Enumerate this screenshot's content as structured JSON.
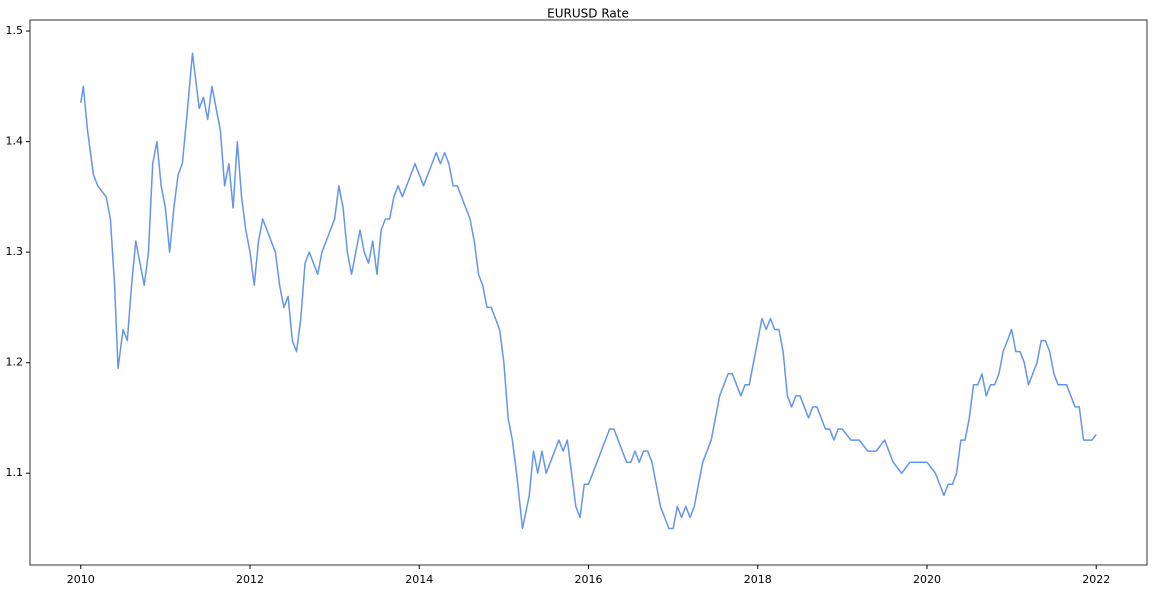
{
  "chart_data": {
    "type": "line",
    "title": "EURUSD Rate",
    "x": [
      2010.0,
      2010.03,
      2010.08,
      2010.15,
      2010.2,
      2010.3,
      2010.35,
      2010.4,
      2010.44,
      2010.5,
      2010.55,
      2010.6,
      2010.65,
      2010.7,
      2010.75,
      2010.8,
      2010.85,
      2010.9,
      2010.95,
      2011.0,
      2011.05,
      2011.1,
      2011.15,
      2011.2,
      2011.25,
      2011.32,
      2011.4,
      2011.45,
      2011.5,
      2011.55,
      2011.6,
      2011.65,
      2011.7,
      2011.75,
      2011.8,
      2011.85,
      2011.9,
      2011.95,
      2012.0,
      2012.05,
      2012.1,
      2012.15,
      2012.2,
      2012.25,
      2012.3,
      2012.35,
      2012.4,
      2012.45,
      2012.5,
      2012.55,
      2012.6,
      2012.65,
      2012.7,
      2012.75,
      2012.8,
      2012.85,
      2012.9,
      2012.95,
      2013.0,
      2013.05,
      2013.1,
      2013.15,
      2013.2,
      2013.25,
      2013.3,
      2013.35,
      2013.4,
      2013.45,
      2013.5,
      2013.55,
      2013.6,
      2013.65,
      2013.7,
      2013.75,
      2013.8,
      2013.85,
      2013.9,
      2013.95,
      2014.0,
      2014.05,
      2014.1,
      2014.15,
      2014.2,
      2014.25,
      2014.3,
      2014.35,
      2014.4,
      2014.45,
      2014.5,
      2014.55,
      2014.6,
      2014.65,
      2014.7,
      2014.75,
      2014.8,
      2014.85,
      2014.9,
      2014.95,
      2015.0,
      2015.05,
      2015.1,
      2015.15,
      2015.22,
      2015.3,
      2015.35,
      2015.4,
      2015.45,
      2015.5,
      2015.55,
      2015.6,
      2015.65,
      2015.7,
      2015.75,
      2015.8,
      2015.85,
      2015.9,
      2015.95,
      2016.0,
      2016.05,
      2016.1,
      2016.15,
      2016.2,
      2016.25,
      2016.3,
      2016.35,
      2016.4,
      2016.45,
      2016.5,
      2016.55,
      2016.6,
      2016.65,
      2016.7,
      2016.75,
      2016.8,
      2016.85,
      2016.9,
      2016.95,
      2017.0,
      2017.05,
      2017.1,
      2017.15,
      2017.2,
      2017.25,
      2017.3,
      2017.35,
      2017.4,
      2017.45,
      2017.5,
      2017.55,
      2017.6,
      2017.65,
      2017.7,
      2017.75,
      2017.8,
      2017.85,
      2017.9,
      2017.95,
      2018.0,
      2018.05,
      2018.1,
      2018.15,
      2018.2,
      2018.25,
      2018.3,
      2018.35,
      2018.4,
      2018.45,
      2018.5,
      2018.55,
      2018.6,
      2018.65,
      2018.7,
      2018.75,
      2018.8,
      2018.85,
      2018.9,
      2018.95,
      2019.0,
      2019.1,
      2019.2,
      2019.3,
      2019.4,
      2019.5,
      2019.6,
      2019.7,
      2019.8,
      2019.9,
      2020.0,
      2020.1,
      2020.2,
      2020.25,
      2020.3,
      2020.35,
      2020.4,
      2020.45,
      2020.5,
      2020.55,
      2020.6,
      2020.65,
      2020.7,
      2020.75,
      2020.8,
      2020.85,
      2020.9,
      2020.95,
      2021.0,
      2021.05,
      2021.1,
      2021.15,
      2021.2,
      2021.25,
      2021.3,
      2021.35,
      2021.4,
      2021.45,
      2021.5,
      2021.55,
      2021.6,
      2021.65,
      2021.7,
      2021.75,
      2021.8,
      2021.85,
      2021.9,
      2021.95,
      2022.0
    ],
    "series": [
      {
        "name": "EURUSD",
        "color": "#6495ed",
        "values": [
          1.435,
          1.45,
          1.41,
          1.37,
          1.36,
          1.35,
          1.33,
          1.27,
          1.195,
          1.23,
          1.22,
          1.27,
          1.31,
          1.29,
          1.27,
          1.3,
          1.38,
          1.4,
          1.36,
          1.34,
          1.3,
          1.34,
          1.37,
          1.38,
          1.42,
          1.48,
          1.43,
          1.44,
          1.42,
          1.45,
          1.43,
          1.41,
          1.36,
          1.38,
          1.34,
          1.4,
          1.35,
          1.32,
          1.3,
          1.27,
          1.31,
          1.33,
          1.32,
          1.31,
          1.3,
          1.27,
          1.25,
          1.26,
          1.22,
          1.21,
          1.24,
          1.29,
          1.3,
          1.29,
          1.28,
          1.3,
          1.31,
          1.32,
          1.33,
          1.36,
          1.34,
          1.3,
          1.28,
          1.3,
          1.32,
          1.3,
          1.29,
          1.31,
          1.28,
          1.32,
          1.33,
          1.33,
          1.35,
          1.36,
          1.35,
          1.36,
          1.37,
          1.38,
          1.37,
          1.36,
          1.37,
          1.38,
          1.39,
          1.38,
          1.39,
          1.38,
          1.36,
          1.36,
          1.35,
          1.34,
          1.33,
          1.31,
          1.28,
          1.27,
          1.25,
          1.25,
          1.24,
          1.23,
          1.2,
          1.15,
          1.13,
          1.1,
          1.05,
          1.08,
          1.12,
          1.1,
          1.12,
          1.1,
          1.11,
          1.12,
          1.13,
          1.12,
          1.13,
          1.1,
          1.07,
          1.06,
          1.09,
          1.09,
          1.1,
          1.11,
          1.12,
          1.13,
          1.14,
          1.14,
          1.13,
          1.12,
          1.11,
          1.11,
          1.12,
          1.11,
          1.12,
          1.12,
          1.11,
          1.09,
          1.07,
          1.06,
          1.05,
          1.05,
          1.07,
          1.06,
          1.07,
          1.06,
          1.07,
          1.09,
          1.11,
          1.12,
          1.13,
          1.15,
          1.17,
          1.18,
          1.19,
          1.19,
          1.18,
          1.17,
          1.18,
          1.18,
          1.2,
          1.22,
          1.24,
          1.23,
          1.24,
          1.23,
          1.23,
          1.21,
          1.17,
          1.16,
          1.17,
          1.17,
          1.16,
          1.15,
          1.16,
          1.16,
          1.15,
          1.14,
          1.14,
          1.13,
          1.14,
          1.14,
          1.13,
          1.13,
          1.12,
          1.12,
          1.13,
          1.11,
          1.1,
          1.11,
          1.11,
          1.11,
          1.1,
          1.08,
          1.09,
          1.09,
          1.1,
          1.13,
          1.13,
          1.15,
          1.18,
          1.18,
          1.19,
          1.17,
          1.18,
          1.18,
          1.19,
          1.21,
          1.22,
          1.23,
          1.21,
          1.21,
          1.2,
          1.18,
          1.19,
          1.2,
          1.22,
          1.22,
          1.21,
          1.19,
          1.18,
          1.18,
          1.18,
          1.17,
          1.16,
          1.16,
          1.13,
          1.13,
          1.13,
          1.135
        ]
      }
    ],
    "xlim": [
      2009.4,
      2022.6
    ],
    "xticks": [
      2010,
      2012,
      2014,
      2016,
      2018,
      2020,
      2022
    ],
    "ylim": [
      1.017,
      1.51
    ],
    "yticks": [
      1.1,
      1.2,
      1.3,
      1.4,
      1.5
    ]
  }
}
